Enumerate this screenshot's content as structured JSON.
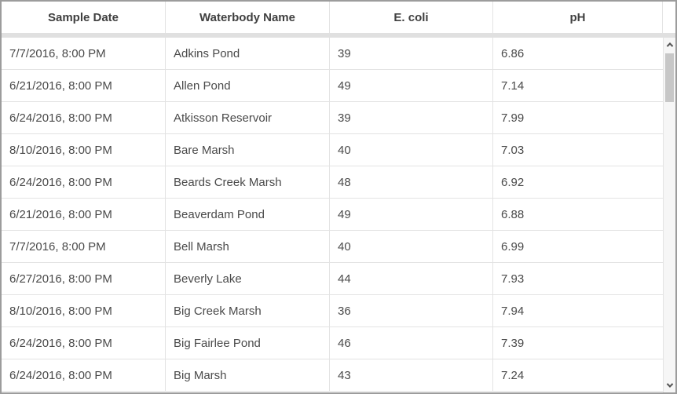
{
  "table": {
    "columns": [
      {
        "id": "date",
        "label": "Sample Date"
      },
      {
        "id": "name",
        "label": "Waterbody Name"
      },
      {
        "id": "ecoli",
        "label": "E. coli"
      },
      {
        "id": "ph",
        "label": "pH"
      }
    ],
    "rows": [
      {
        "date": "7/7/2016, 8:00 PM",
        "name": "Adkins Pond",
        "ecoli": "39",
        "ph": "6.86"
      },
      {
        "date": "6/21/2016, 8:00 PM",
        "name": "Allen Pond",
        "ecoli": "49",
        "ph": "7.14"
      },
      {
        "date": "6/24/2016, 8:00 PM",
        "name": "Atkisson Reservoir",
        "ecoli": "39",
        "ph": "7.99"
      },
      {
        "date": "8/10/2016, 8:00 PM",
        "name": "Bare Marsh",
        "ecoli": "40",
        "ph": "7.03"
      },
      {
        "date": "6/24/2016, 8:00 PM",
        "name": "Beards Creek Marsh",
        "ecoli": "48",
        "ph": "6.92"
      },
      {
        "date": "6/21/2016, 8:00 PM",
        "name": "Beaverdam Pond",
        "ecoli": "49",
        "ph": "6.88"
      },
      {
        "date": "7/7/2016, 8:00 PM",
        "name": "Bell Marsh",
        "ecoli": "40",
        "ph": "6.99"
      },
      {
        "date": "6/27/2016, 8:00 PM",
        "name": "Beverly Lake",
        "ecoli": "44",
        "ph": "7.93"
      },
      {
        "date": "8/10/2016, 8:00 PM",
        "name": "Big Creek Marsh",
        "ecoli": "36",
        "ph": "7.94"
      },
      {
        "date": "6/24/2016, 8:00 PM",
        "name": "Big Fairlee Pond",
        "ecoli": "46",
        "ph": "7.39"
      },
      {
        "date": "6/24/2016, 8:00 PM",
        "name": "Big Marsh",
        "ecoli": "43",
        "ph": "7.24"
      }
    ]
  },
  "icons": {
    "scrollbar_up": "chevron-up-icon",
    "scrollbar_down": "chevron-down-icon"
  },
  "colors": {
    "outer_border": "#9c9c9c",
    "header_text": "#404040",
    "cell_text": "#4a4a4a",
    "divider": "#e3e3e3",
    "header_band": "#e0e0e0",
    "scrollbar_track": "#f6f6f6",
    "scrollbar_thumb": "#c7c7c7"
  }
}
